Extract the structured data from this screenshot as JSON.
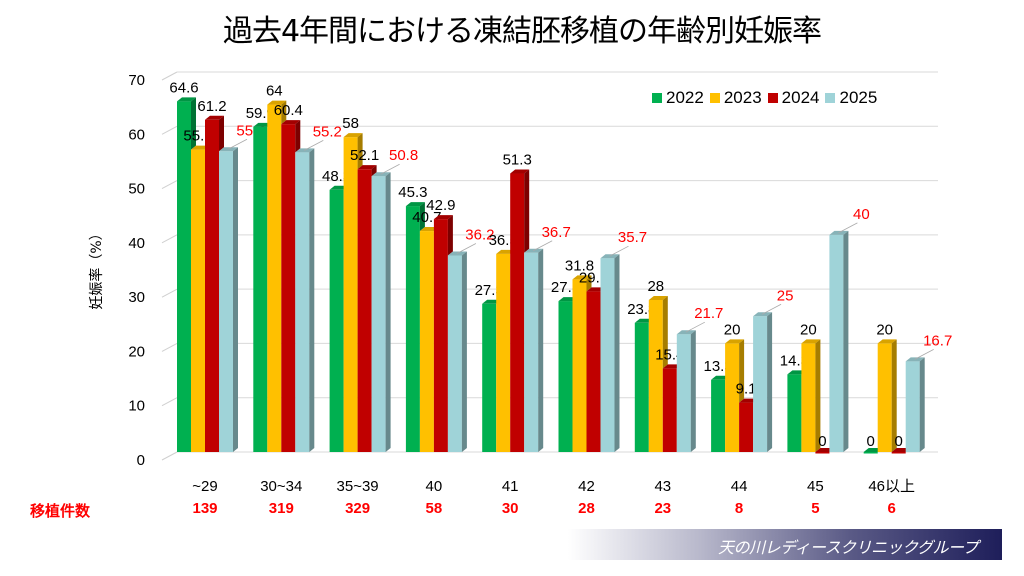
{
  "title": "過去4年間における凍結胚移植の年齢別妊娠率",
  "footer": {
    "count_label": "移植件数",
    "brand": "天の川レディースクリニックグループ"
  },
  "chart_data": {
    "type": "bar",
    "title": "過去4年間における凍結胚移植の年齢別妊娠率",
    "xlabel": "",
    "ylabel": "妊娠率（%）",
    "ylim": [
      0,
      70
    ],
    "yticks": [
      0,
      10,
      20,
      30,
      40,
      50,
      60,
      70
    ],
    "grid": true,
    "legend": "top-right",
    "categories": [
      "~29",
      "30~34",
      "35~39",
      "40",
      "41",
      "42",
      "43",
      "44",
      "45",
      "46以上"
    ],
    "series": [
      {
        "name": "2022",
        "color": "#00b050",
        "values": [
          64.6,
          59.9,
          48.3,
          45.3,
          27.3,
          27.8,
          23.8,
          13.3,
          14.3,
          0
        ]
      },
      {
        "name": "2023",
        "color": "#ffc000",
        "values": [
          55.7,
          64,
          58,
          40.7,
          36.5,
          31.8,
          28,
          20,
          20,
          20
        ]
      },
      {
        "name": "2024",
        "color": "#c00000",
        "values": [
          61.2,
          60.4,
          52.1,
          42.9,
          51.3,
          29.6,
          15.4,
          9.1,
          0,
          0
        ]
      },
      {
        "name": "2025",
        "color": "#9fd3d8",
        "label_color": "#ff0000",
        "values": [
          55.4,
          55.2,
          50.8,
          36.2,
          36.7,
          35.7,
          21.7,
          25,
          40,
          16.7
        ]
      }
    ],
    "transfer_counts": [
      139,
      319,
      329,
      58,
      30,
      28,
      23,
      8,
      5,
      6
    ]
  }
}
